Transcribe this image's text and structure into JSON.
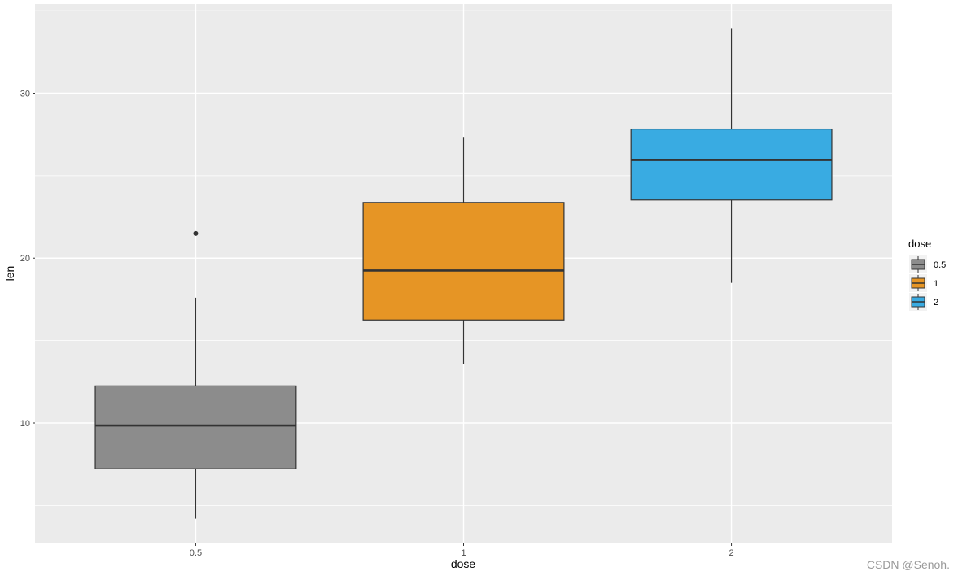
{
  "chart_data": {
    "type": "boxplot",
    "xlabel": "dose",
    "ylabel": "len",
    "categories": [
      "0.5",
      "1",
      "2"
    ],
    "ylim": [
      2.7,
      35.4
    ],
    "yticks": [
      10,
      20,
      30
    ],
    "grid": true,
    "legend": {
      "title": "dose",
      "position": "right",
      "entries": [
        "0.5",
        "1",
        "2"
      ]
    },
    "colors": [
      "#8c8c8c",
      "#e69525",
      "#39abe2"
    ],
    "boxes": [
      {
        "category": "0.5",
        "min": 4.2,
        "q1": 7.225,
        "median": 9.85,
        "q3": 12.25,
        "max": 17.6,
        "outliers": [
          21.5
        ]
      },
      {
        "category": "1",
        "min": 13.6,
        "q1": 16.25,
        "median": 19.25,
        "q3": 23.375,
        "max": 27.3,
        "outliers": []
      },
      {
        "category": "2",
        "min": 18.5,
        "q1": 23.525,
        "median": 25.95,
        "q3": 27.825,
        "max": 33.9,
        "outliers": []
      }
    ]
  },
  "watermark": "CSDN @Senoh."
}
